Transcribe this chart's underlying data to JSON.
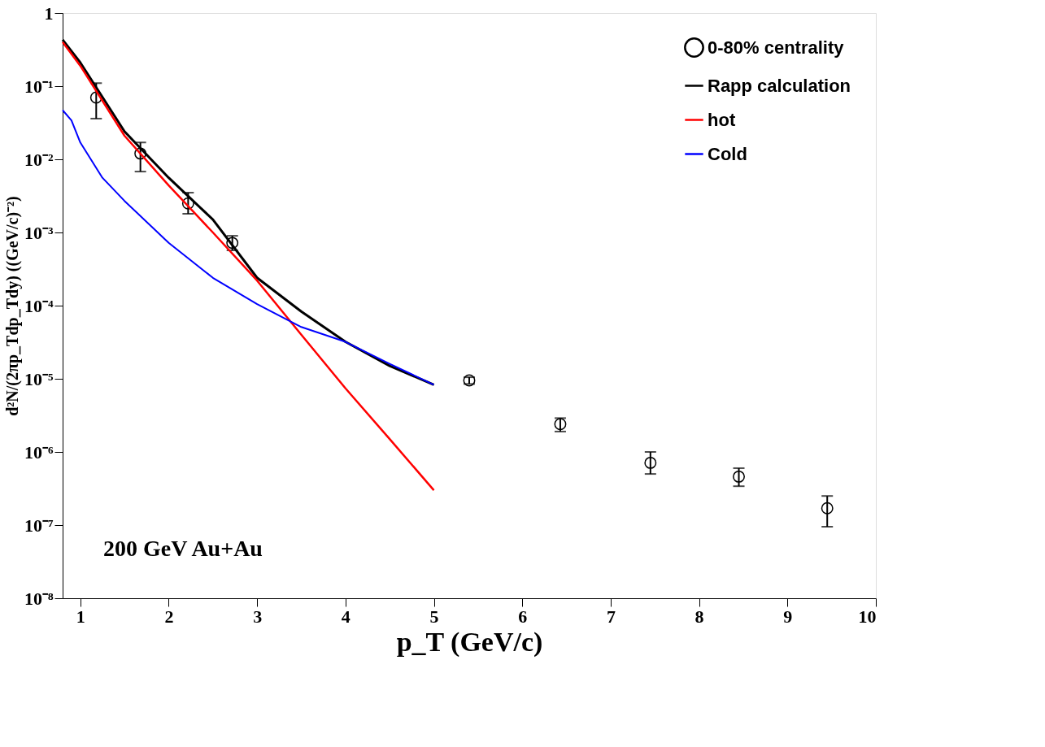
{
  "chart_data": {
    "type": "line",
    "xlabel": "p_T (GeV/c)",
    "ylabel": "d²N/(2πp_Tdp_Tdy) ((GeV/c)⁻²)",
    "log": "y",
    "grid": false,
    "legend": "top right",
    "xlim": [
      0.8,
      10
    ],
    "xticks": [
      1,
      2,
      3,
      4,
      5,
      6,
      7,
      8,
      9,
      10
    ],
    "ylim": [
      1e-08,
      1
    ],
    "yticks": [
      {
        "value": 1e-08,
        "label": "10⁻⁸"
      },
      {
        "value": 1e-07,
        "label": "10⁻⁷"
      },
      {
        "value": 1e-06,
        "label": "10⁻⁶"
      },
      {
        "value": 1e-05,
        "label": "10⁻⁵"
      },
      {
        "value": 0.0001,
        "label": "10⁻⁴"
      },
      {
        "value": 0.001,
        "label": "10⁻³"
      },
      {
        "value": 0.01,
        "label": "10⁻²"
      },
      {
        "value": 0.1,
        "label": "10⁻¹"
      },
      1
    ],
    "annotations": [
      "200 GeV Au+Au"
    ],
    "series": [
      {
        "name": "0-80% centrality",
        "type": "scatter",
        "marker": "circle",
        "color": "#000000",
        "x": [
          1.18,
          1.68,
          2.22,
          2.72,
          5.4,
          6.43,
          7.45,
          8.45,
          9.45
        ],
        "values": [
          0.07,
          0.012,
          0.0025,
          0.00072,
          9.5e-06,
          2.4e-06,
          7.1e-07,
          4.6e-07,
          1.7e-07
        ],
        "errors": [
          [
            0.036,
            0.11
          ],
          [
            0.0068,
            0.017
          ],
          [
            0.0018,
            0.0035
          ],
          [
            0.00057,
            0.0009
          ],
          [
            8.5e-06,
            1.05e-05
          ],
          [
            1.9e-06,
            2.9e-06
          ],
          [
            5e-07,
            1e-06
          ],
          [
            3.4e-07,
            6e-07
          ],
          [
            9.5e-08,
            2.5e-07
          ]
        ]
      },
      {
        "name": "Rapp calculation",
        "color": "#000000",
        "x": [
          0.8,
          1.0,
          1.5,
          2.0,
          2.5,
          3.0,
          3.5,
          4.0,
          4.5,
          5.0
        ],
        "values": [
          0.43,
          0.21,
          0.024,
          0.0056,
          0.0015,
          0.00024,
          8.3e-05,
          3.2e-05,
          1.5e-05,
          8.3e-06
        ]
      },
      {
        "name": "hot",
        "color": "#ff0000",
        "x": [
          0.8,
          1.0,
          1.5,
          2.0,
          2.5,
          3.0,
          3.5,
          4.0,
          4.5,
          5.0
        ],
        "values": [
          0.4,
          0.19,
          0.021,
          0.0044,
          0.001,
          0.00022,
          4e-05,
          7.4e-06,
          1.5e-06,
          3e-07
        ]
      },
      {
        "name": " Cold",
        "color": "#0000ff",
        "x": [
          0.8,
          0.9,
          1.0,
          1.25,
          1.5,
          2.0,
          2.5,
          3.0,
          3.5,
          4.0,
          4.5,
          5.0
        ],
        "values": [
          0.047,
          0.034,
          0.017,
          0.0056,
          0.0027,
          0.00072,
          0.00024,
          0.000105,
          5.1e-05,
          3.2e-05,
          1.6e-05,
          8.3e-06
        ]
      }
    ]
  }
}
